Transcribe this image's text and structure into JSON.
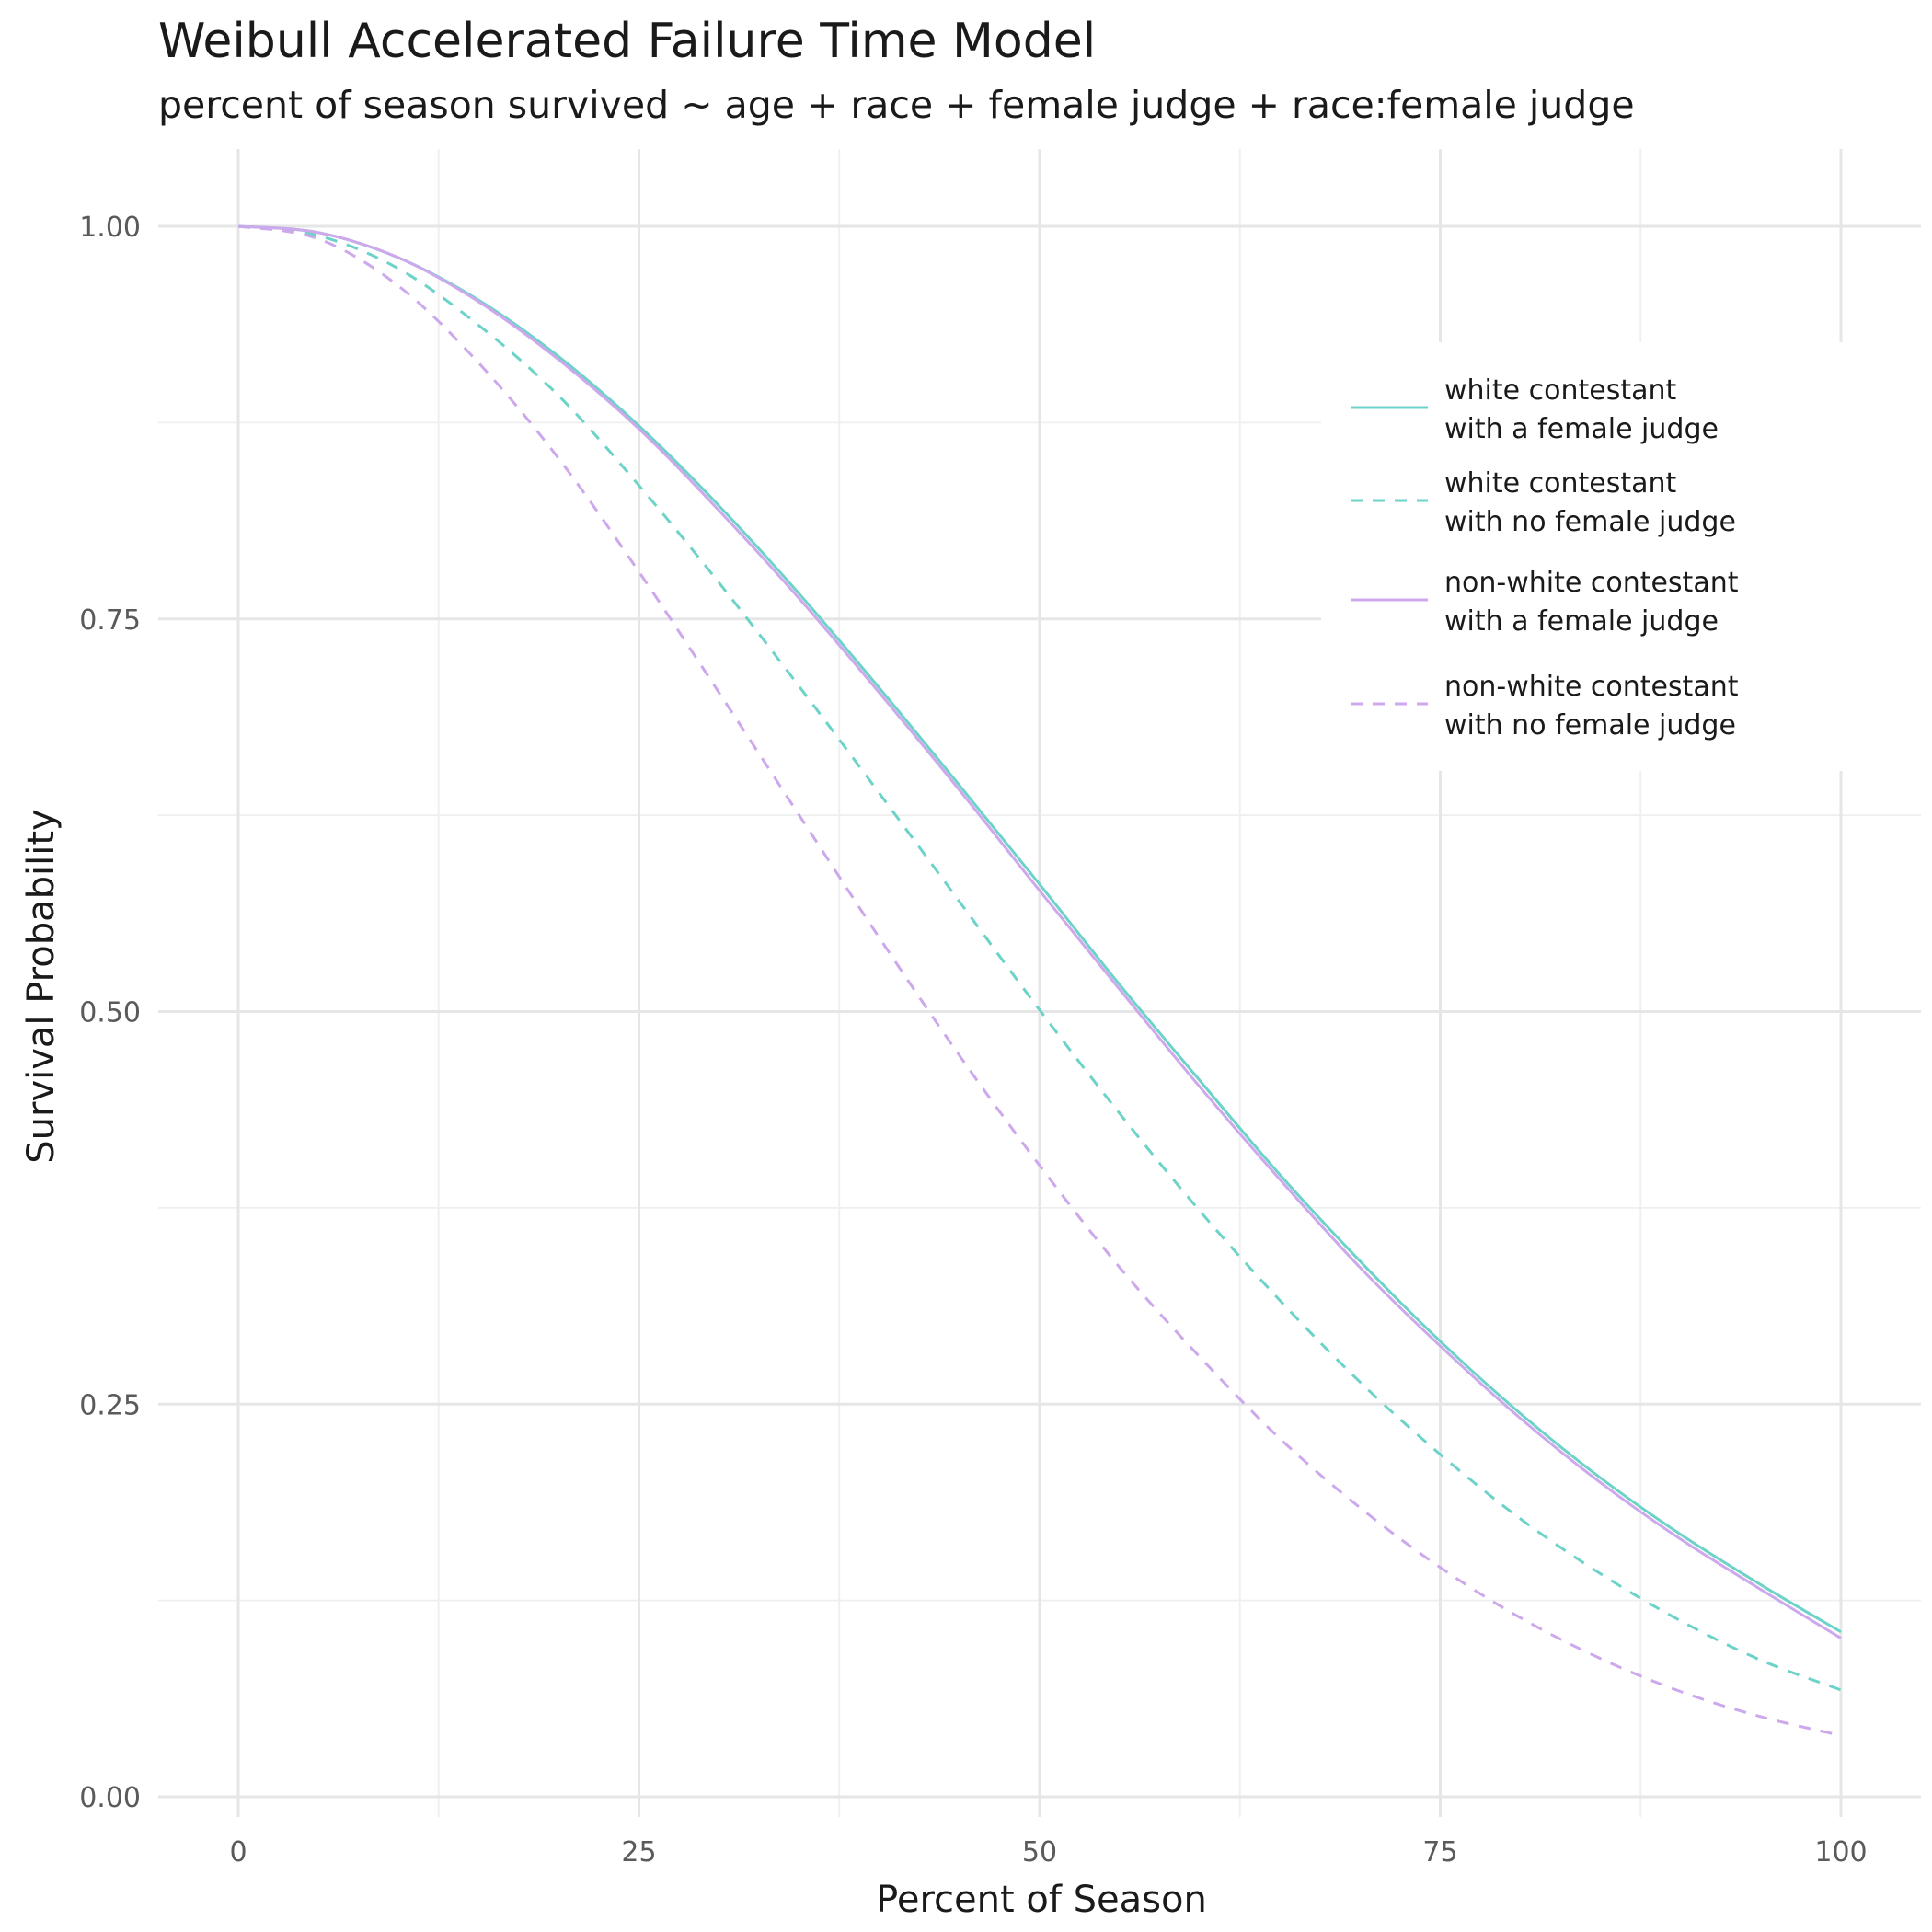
{
  "chart_data": {
    "type": "line",
    "title": "Weibull Accelerated Failure Time Model",
    "subtitle": "percent of season survived ~ age + race + female judge + race:female judge",
    "xlabel": "Percent of Season",
    "ylabel": "Survival Probability",
    "xlim": [
      -5,
      102
    ],
    "ylim": [
      -0.01,
      1.05
    ],
    "x_ticks": [
      0,
      25,
      50,
      75,
      100
    ],
    "x_tick_labels": [
      "0",
      "25",
      "50",
      "75",
      "100"
    ],
    "y_ticks": [
      0,
      0.25,
      0.5,
      0.75,
      1
    ],
    "y_tick_labels": [
      "0.00",
      "0.25",
      "0.50",
      "0.75",
      "1.00"
    ],
    "grid": true,
    "legend_position": "right-inside",
    "x": [
      0,
      5,
      10,
      15,
      20,
      25,
      30,
      35,
      40,
      45,
      50,
      55,
      60,
      65,
      70,
      75,
      80,
      85,
      90,
      95,
      100
    ],
    "series": [
      {
        "name": "white contestant\nwith a female judge",
        "color": "#6dd3c8",
        "dash": "solid",
        "values": [
          1.0,
          0.996,
          0.98,
          0.953,
          0.917,
          0.873,
          0.822,
          0.766,
          0.706,
          0.644,
          0.581,
          0.517,
          0.456,
          0.396,
          0.341,
          0.29,
          0.244,
          0.203,
          0.167,
          0.135,
          0.105
        ]
      },
      {
        "name": "white contestant\nwith no female judge",
        "color": "#6dd3c8",
        "dash": "dashed",
        "values": [
          1.0,
          0.994,
          0.973,
          0.937,
          0.892,
          0.835,
          0.773,
          0.707,
          0.639,
          0.57,
          0.501,
          0.435,
          0.373,
          0.316,
          0.264,
          0.218,
          0.177,
          0.142,
          0.112,
          0.087,
          0.068
        ]
      },
      {
        "name": "non-white contestant\nwith a female judge",
        "color": "#cda8ec",
        "dash": "solid",
        "values": [
          1.0,
          0.996,
          0.98,
          0.952,
          0.915,
          0.871,
          0.819,
          0.763,
          0.703,
          0.641,
          0.577,
          0.514,
          0.452,
          0.393,
          0.337,
          0.287,
          0.241,
          0.2,
          0.164,
          0.132,
          0.101
        ]
      },
      {
        "name": "non-white contestant\nwith no female judge",
        "color": "#cda8ec",
        "dash": "dashed",
        "values": [
          1.0,
          0.992,
          0.962,
          0.913,
          0.852,
          0.78,
          0.703,
          0.625,
          0.547,
          0.472,
          0.402,
          0.337,
          0.28,
          0.228,
          0.184,
          0.146,
          0.114,
          0.088,
          0.067,
          0.051,
          0.039
        ]
      }
    ]
  }
}
